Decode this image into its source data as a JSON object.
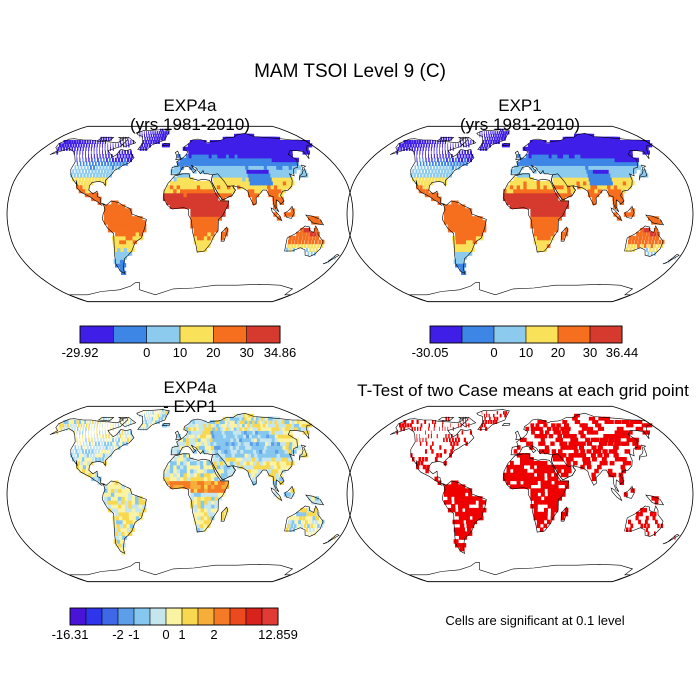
{
  "title": "MAM TSOI Level 9 (C)",
  "note": "Cells are significant at 0.1 level",
  "chart_data": [
    {
      "type": "heatmap",
      "kind": "map",
      "title": "EXP4a",
      "subtitle": "(yrs 1981-2010)",
      "projection": "Robinson",
      "colorbar": {
        "colors": [
          "#3f1fe8",
          "#3d86e6",
          "#8ccbee",
          "#f9e25a",
          "#f56f1f",
          "#d63a2e"
        ],
        "boundaries": [
          -29.92,
          0,
          10,
          20,
          30,
          34.86
        ],
        "tick_labels": [
          "-29.92",
          "0",
          "10",
          "20",
          "30",
          "34.86"
        ]
      },
      "range": [
        -29.92,
        34.86
      ]
    },
    {
      "type": "heatmap",
      "kind": "map",
      "title": "EXP1",
      "subtitle": "(yrs 1981-2010)",
      "projection": "Robinson",
      "colorbar": {
        "colors": [
          "#3f1fe8",
          "#3d86e6",
          "#8ccbee",
          "#f9e25a",
          "#f56f1f",
          "#d63a2e"
        ],
        "boundaries": [
          -30.05,
          0,
          10,
          20,
          30,
          36.44
        ],
        "tick_labels": [
          "-30.05",
          "0",
          "10",
          "20",
          "30",
          "36.44"
        ]
      },
      "range": [
        -30.05,
        36.44
      ]
    },
    {
      "type": "heatmap",
      "kind": "map",
      "title": "EXP4a",
      "subtitle": "- EXP1",
      "projection": "Robinson",
      "colorbar": {
        "colors": [
          "#4a14d8",
          "#2f35ea",
          "#3e68e8",
          "#5d9ee9",
          "#86c7ef",
          "#c5e6ee",
          "#fbf3a4",
          "#f8d84f",
          "#f6ae3a",
          "#f47a25",
          "#ea4a1e",
          "#d8231c",
          "#e23a34"
        ],
        "tick_labels": [
          "-16.31",
          "-2",
          "-1",
          "0",
          "1",
          "2",
          "12.859"
        ]
      },
      "range": [
        -16.31,
        12.859
      ]
    },
    {
      "type": "heatmap",
      "kind": "map",
      "title": "T-Test of two Case means at each grid point",
      "projection": "Robinson",
      "significant_color": "#ee0000",
      "significance_level": 0.1
    }
  ]
}
